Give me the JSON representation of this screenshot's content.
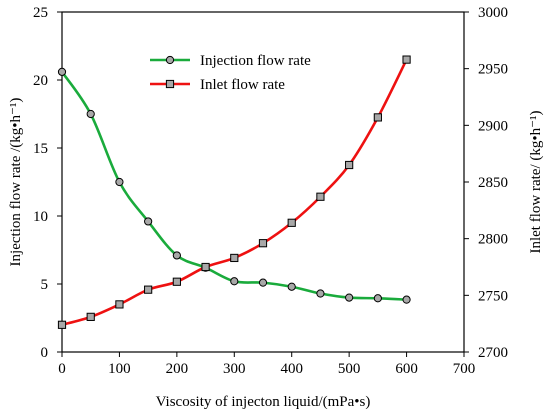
{
  "chart_data": {
    "type": "line",
    "x": [
      0,
      50,
      100,
      150,
      200,
      250,
      300,
      350,
      400,
      450,
      500,
      550,
      600
    ],
    "xlabel": "Viscosity of injecton liquid/(mPa•s)",
    "xlim": [
      0,
      700
    ],
    "xticks": [
      "0",
      "100",
      "200",
      "300",
      "400",
      "500",
      "600",
      "700"
    ],
    "ylabel_left": "Injection flow rate /(kg•h⁻¹)",
    "ylim_left": [
      0,
      25
    ],
    "yticks_left": [
      "0",
      "5",
      "10",
      "15",
      "20",
      "25"
    ],
    "ylabel_right": "Inlet flow rate/ (kg•h⁻¹)",
    "ylim_right": [
      2700,
      3000
    ],
    "yticks_right": [
      "2700",
      "2750",
      "2800",
      "2850",
      "2900",
      "2950",
      "3000"
    ],
    "grid": false,
    "legend_position": "top-center",
    "series": [
      {
        "name": "Injection flow rate",
        "axis": "left",
        "marker": "circle",
        "color": "#1aab3c",
        "values": [
          20.6,
          17.5,
          12.5,
          9.6,
          7.1,
          6.2,
          5.2,
          5.1,
          4.8,
          4.3,
          4.0,
          3.95,
          3.85
        ]
      },
      {
        "name": "Inlet flow rate",
        "axis": "right",
        "marker": "square",
        "color": "#ee1111",
        "values": [
          2724,
          2731,
          2742,
          2755,
          2762,
          2775,
          2783,
          2796,
          2814,
          2837,
          2865,
          2907,
          2958
        ]
      }
    ]
  }
}
